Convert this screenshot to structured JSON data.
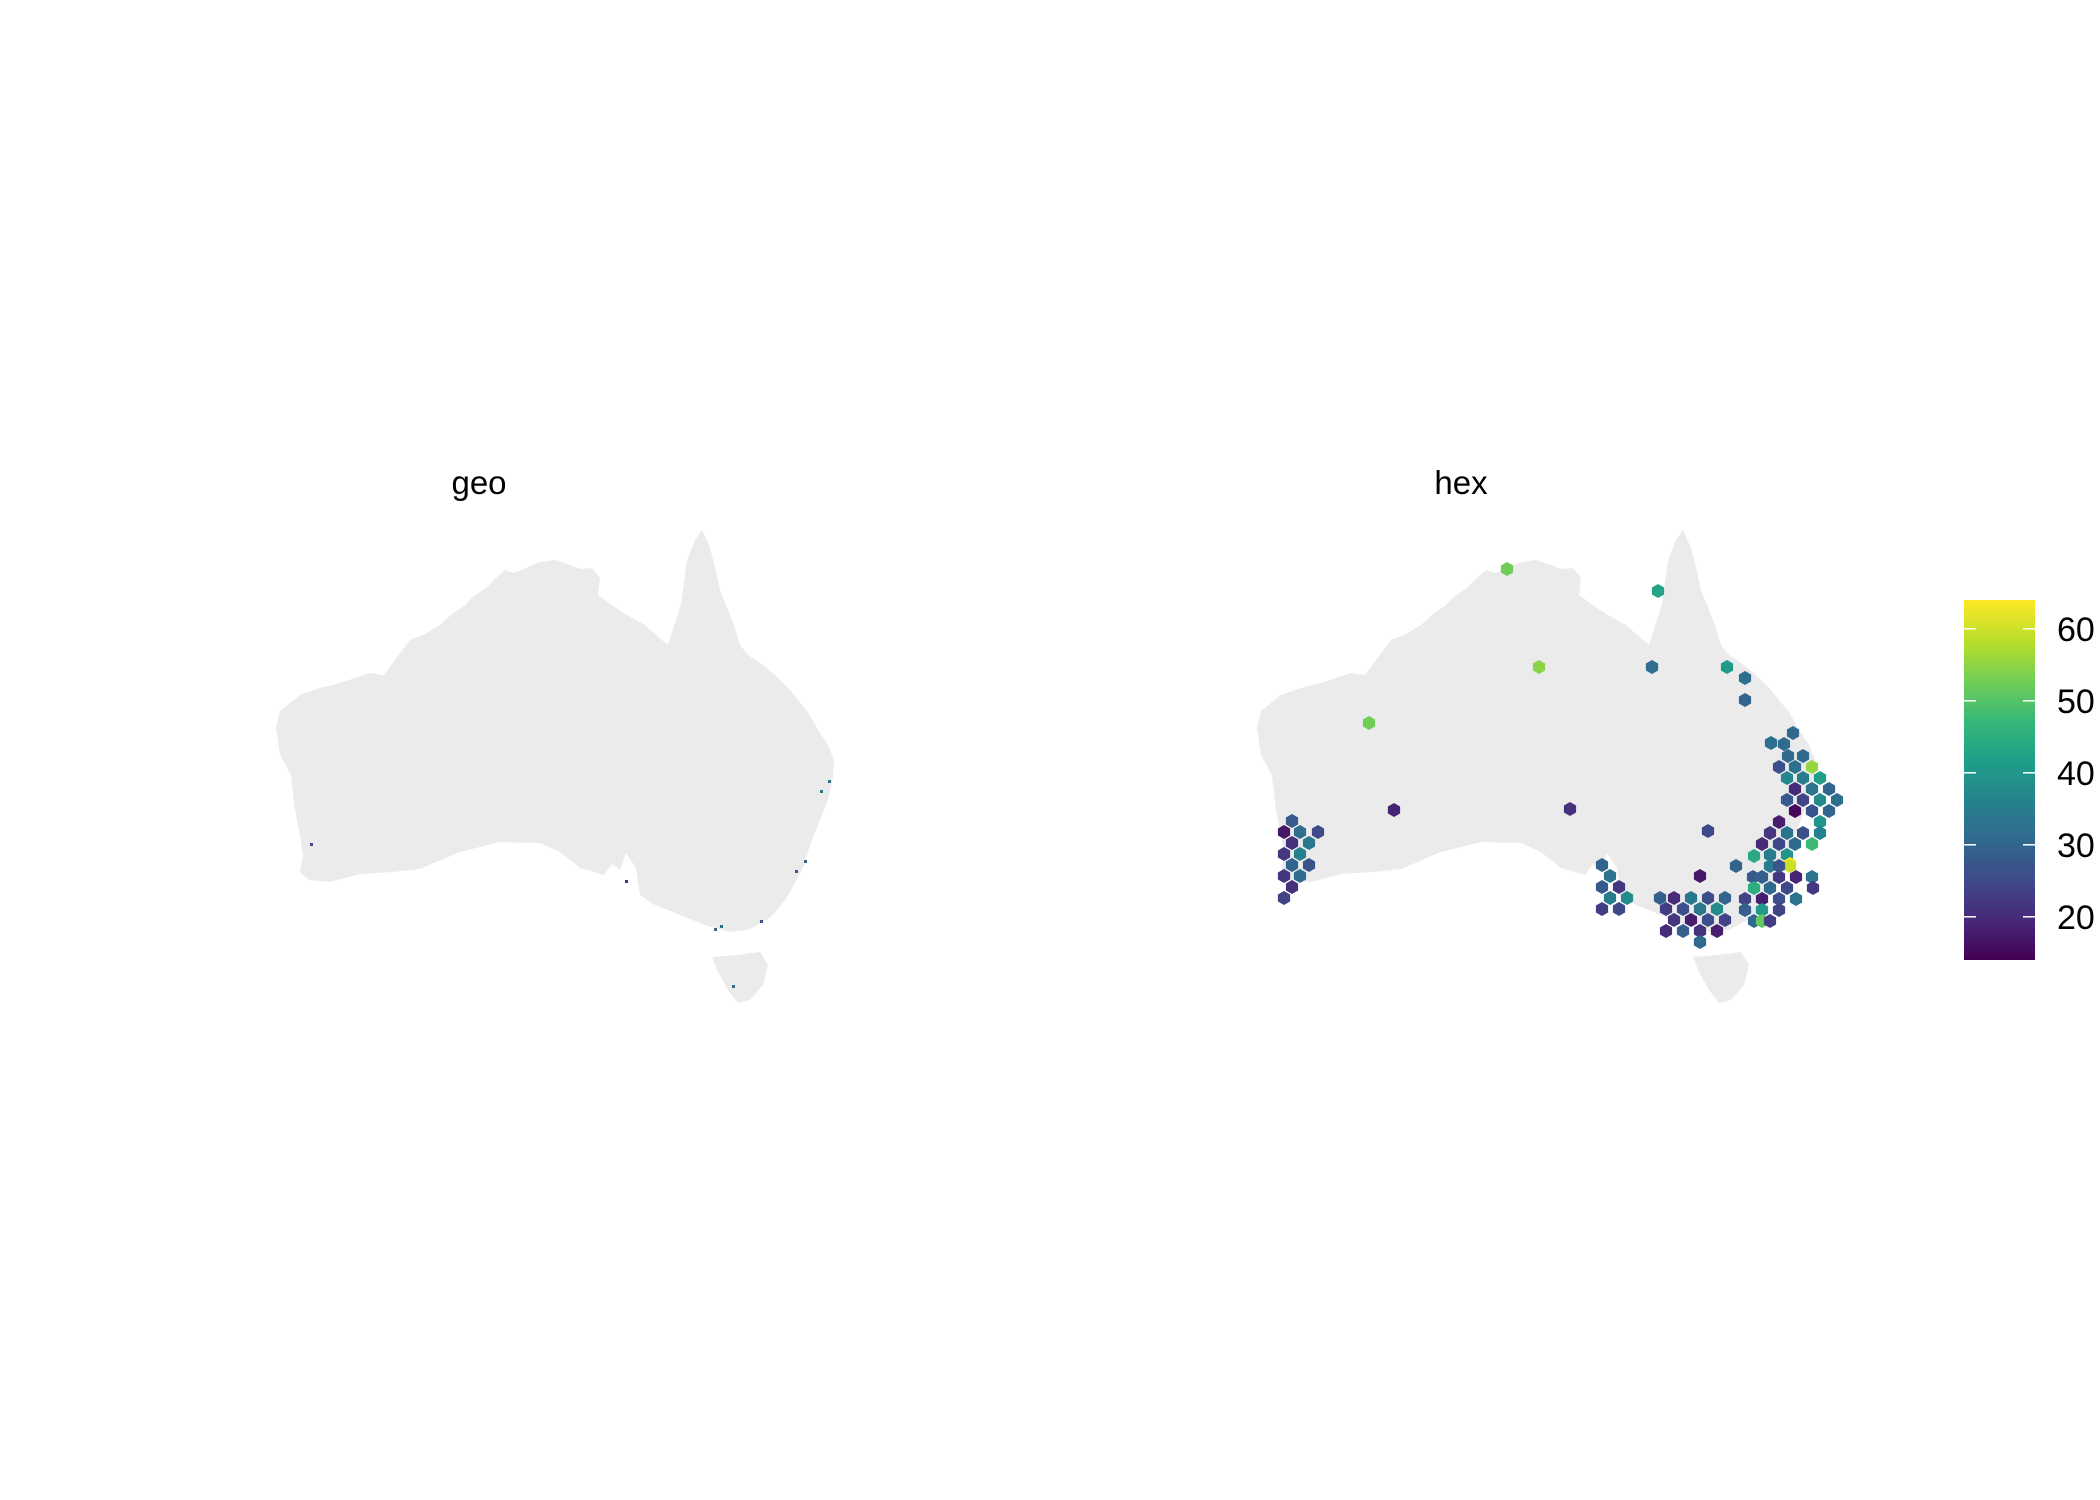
{
  "panels": [
    {
      "id": "geo",
      "title": "geo"
    },
    {
      "id": "hex",
      "title": "hex"
    }
  ],
  "legend": {
    "title": "",
    "min": 14,
    "max": 64,
    "ticks": [
      {
        "value": 20,
        "label": "20"
      },
      {
        "value": 30,
        "label": "30"
      },
      {
        "value": 40,
        "label": "40"
      },
      {
        "value": 50,
        "label": "50"
      },
      {
        "value": 60,
        "label": "60"
      }
    ],
    "palette": [
      "#440154",
      "#482878",
      "#3e4a89",
      "#31688e",
      "#26828e",
      "#1f9e89",
      "#35b779",
      "#6ece58",
      "#b5de2b",
      "#fde725"
    ]
  },
  "chart_data": {
    "type": "map",
    "region": "Australia",
    "fill_scale": "viridis",
    "geo_cell_values": [
      33,
      30,
      28,
      32,
      25,
      30,
      22,
      35,
      27,
      31
    ],
    "hex_cells": [
      {
        "value": 53
      },
      {
        "value": 43
      },
      {
        "value": 55
      },
      {
        "value": 32
      },
      {
        "value": 41
      },
      {
        "value": 32
      },
      {
        "value": 30
      },
      {
        "value": 53
      },
      {
        "value": 32
      },
      {
        "value": 31
      },
      {
        "value": 31
      },
      {
        "value": 31
      },
      {
        "value": 31
      },
      {
        "value": 26
      },
      {
        "value": 32
      },
      {
        "value": 56
      },
      {
        "value": 37
      },
      {
        "value": 35
      },
      {
        "value": 42
      },
      {
        "value": 20
      },
      {
        "value": 33
      },
      {
        "value": 30
      },
      {
        "value": 28
      },
      {
        "value": 24
      },
      {
        "value": 38
      },
      {
        "value": 32
      },
      {
        "value": 15
      },
      {
        "value": 27
      },
      {
        "value": 30
      },
      {
        "value": 40
      },
      {
        "value": 18
      },
      {
        "value": 22
      },
      {
        "value": 33
      },
      {
        "value": 26
      },
      {
        "value": 36
      },
      {
        "value": 20
      },
      {
        "value": 25
      },
      {
        "value": 31
      },
      {
        "value": 48
      },
      {
        "value": 35
      },
      {
        "value": 40
      },
      {
        "value": 64
      },
      {
        "value": 44
      },
      {
        "value": 35
      },
      {
        "value": 30
      },
      {
        "value": 28
      },
      {
        "value": 29
      },
      {
        "value": 22
      },
      {
        "value": 45
      },
      {
        "value": 31
      },
      {
        "value": 25
      },
      {
        "value": 19
      },
      {
        "value": 33
      },
      {
        "value": 24
      },
      {
        "value": 18
      },
      {
        "value": 26
      },
      {
        "value": 33
      },
      {
        "value": 22
      },
      {
        "value": 60
      },
      {
        "value": 29
      },
      {
        "value": 41
      },
      {
        "value": 24
      },
      {
        "value": 31
      },
      {
        "value": 52
      },
      {
        "value": 27
      },
      {
        "value": 23
      },
      {
        "value": 19
      },
      {
        "value": 21
      },
      {
        "value": 25
      },
      {
        "value": 28
      },
      {
        "value": 17
      },
      {
        "value": 32
      },
      {
        "value": 25
      },
      {
        "value": 21
      },
      {
        "value": 34
      },
      {
        "value": 22
      },
      {
        "value": 36
      },
      {
        "value": 30
      },
      {
        "value": 27
      },
      {
        "value": 22
      },
      {
        "value": 32
      },
      {
        "value": 21
      },
      {
        "value": 24
      },
      {
        "value": 30
      },
      {
        "value": 33
      },
      {
        "value": 28
      },
      {
        "value": 22
      },
      {
        "value": 35
      },
      {
        "value": 38
      },
      {
        "value": 23
      },
      {
        "value": 25
      },
      {
        "value": 17
      },
      {
        "value": 20
      },
      {
        "value": 29
      },
      {
        "value": 34
      },
      {
        "value": 26
      },
      {
        "value": 30
      },
      {
        "value": 23
      },
      {
        "value": 26
      },
      {
        "value": 34
      },
      {
        "value": 38
      },
      {
        "value": 22
      },
      {
        "value": 18
      },
      {
        "value": 26
      },
      {
        "value": 24
      },
      {
        "value": 29
      },
      {
        "value": 21
      },
      {
        "value": 18
      },
      {
        "value": 31
      },
      {
        "value": 20
      },
      {
        "value": 19
      },
      {
        "value": 25
      },
      {
        "value": 30
      },
      {
        "value": 33
      }
    ]
  }
}
